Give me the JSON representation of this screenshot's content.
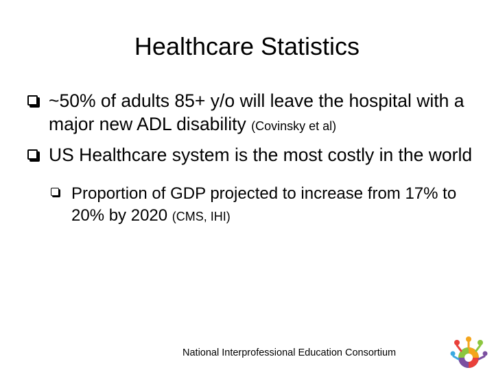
{
  "slide": {
    "title": "Healthcare Statistics",
    "bullets": [
      {
        "text": "~50% of adults 85+ y/o will leave the hospital with a major new ADL disability",
        "citation": "(Covinsky et al)"
      },
      {
        "text": "US Healthcare system is the most costly in the world",
        "citation": ""
      }
    ],
    "sub_bullet": {
      "text": "Proportion of GDP projected to increase from 17% to 20% by 2020",
      "citation": "(CMS, IHI)"
    },
    "footer": "National Interprofessional Education Consortium"
  },
  "icons": {
    "bullet": "checkbox-square-icon",
    "logo": "consortium-logo-icon"
  },
  "colors": {
    "background": "#ffffff",
    "text": "#000000"
  }
}
